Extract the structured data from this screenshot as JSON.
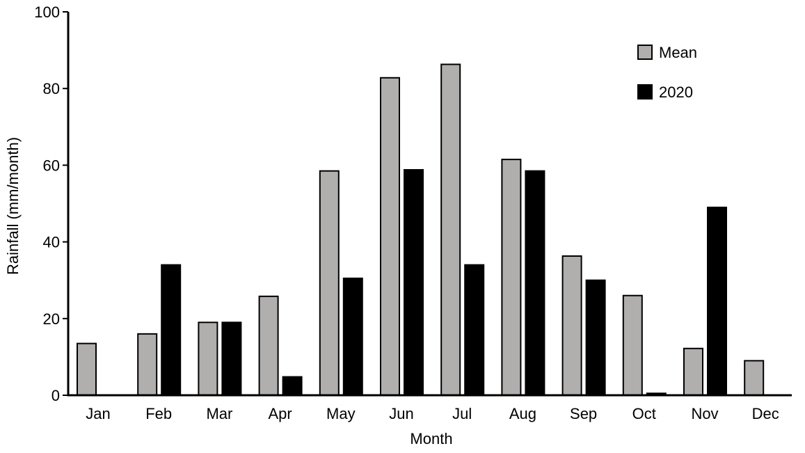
{
  "chart_data": {
    "type": "bar",
    "categories": [
      "Jan",
      "Feb",
      "Mar",
      "Apr",
      "May",
      "Jun",
      "Jul",
      "Aug",
      "Sep",
      "Oct",
      "Nov",
      "Dec"
    ],
    "series": [
      {
        "name": "Mean",
        "color": "#b1aeae",
        "values": [
          13.5,
          16,
          19,
          25.8,
          58.5,
          82.8,
          86.3,
          61.5,
          36.3,
          26,
          12.2,
          9
        ]
      },
      {
        "name": "2020",
        "color": "#000000",
        "values": [
          0,
          34,
          19,
          4.8,
          30.5,
          58.8,
          34,
          58.5,
          30,
          0.5,
          49,
          0
        ]
      }
    ],
    "xlabel": "Month",
    "ylabel": "Rainfall (mm/month)",
    "ylim": [
      0,
      100
    ],
    "yticks": [
      0,
      20,
      40,
      60,
      80,
      100
    ],
    "legend_position": "top-right",
    "grid": false
  }
}
